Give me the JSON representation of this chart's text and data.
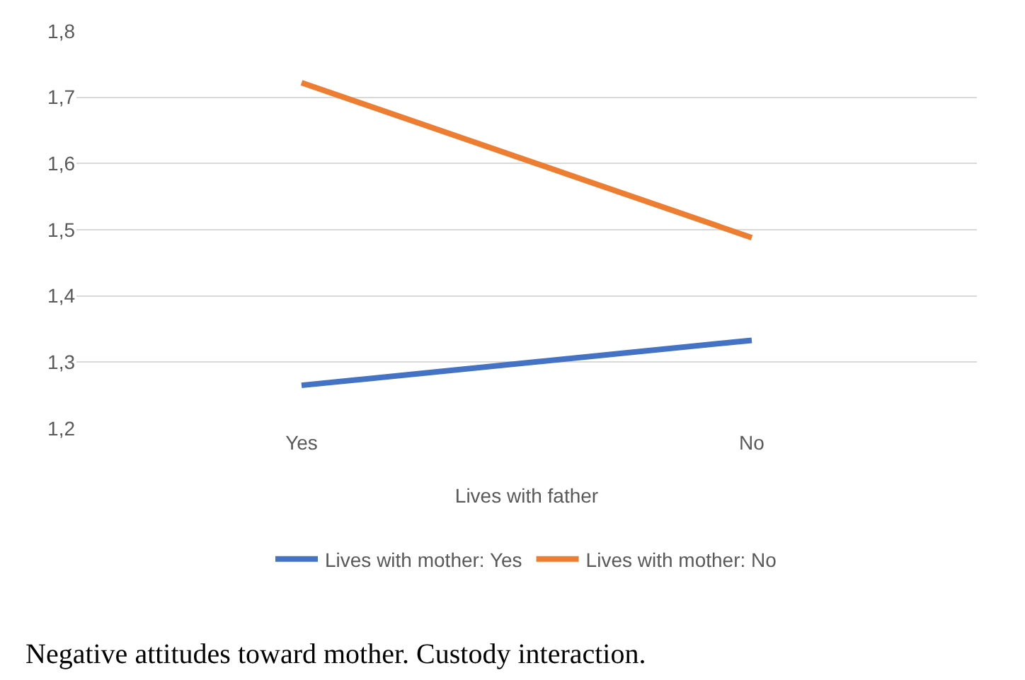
{
  "chart_data": {
    "type": "line",
    "xlabel": "Lives with father",
    "categories": [
      "Yes",
      "No"
    ],
    "series": [
      {
        "name": "Lives with mother: Yes",
        "color": "#4472c4",
        "values": [
          1.265,
          1.333
        ]
      },
      {
        "name": "Lives with mother: No",
        "color": "#ed7d31",
        "values": [
          1.722,
          1.488
        ]
      }
    ],
    "ylim": [
      1.2,
      1.8
    ],
    "yticks": [
      {
        "value": 1.2,
        "label": "1,2"
      },
      {
        "value": 1.3,
        "label": "1,3"
      },
      {
        "value": 1.4,
        "label": "1,4"
      },
      {
        "value": 1.5,
        "label": "1,5"
      },
      {
        "value": 1.6,
        "label": "1,6"
      },
      {
        "value": 1.7,
        "label": "1,7"
      },
      {
        "value": 1.8,
        "label": "1,8"
      }
    ],
    "grid": "y",
    "legend": "bottom",
    "marker": "none",
    "line_style": "solid",
    "annotations": [
      "Negative attitudes toward mother. Custody interaction."
    ]
  }
}
